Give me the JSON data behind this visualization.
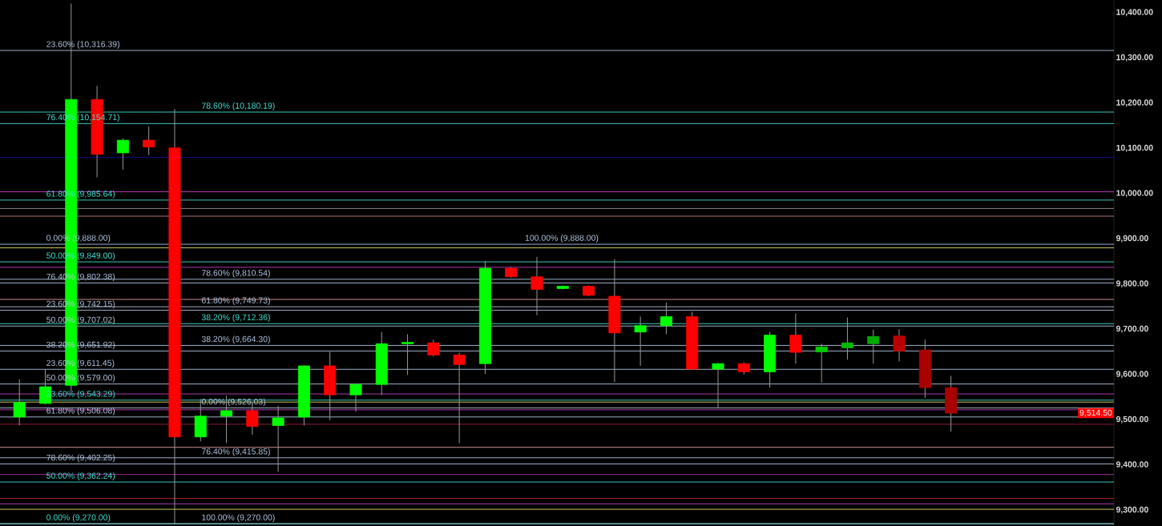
{
  "chart_data": {
    "type": "candlestick",
    "categories": [
      null,
      null,
      null,
      null,
      null,
      null,
      null,
      null,
      null,
      null,
      null,
      null,
      null,
      null,
      null,
      null,
      null,
      null,
      null,
      null,
      null,
      null,
      null,
      null,
      null,
      null,
      null,
      null,
      null,
      null,
      null,
      null,
      null,
      null,
      null,
      null,
      null,
      null,
      null,
      null,
      null,
      null,
      null
    ],
    "ohlc": [
      [
        9506,
        9589,
        9488,
        9538
      ],
      [
        9536,
        9612,
        9534,
        9573
      ],
      [
        9576,
        10420,
        9562,
        10208
      ],
      [
        10208,
        10238,
        10036,
        10087
      ],
      [
        10090,
        10122,
        10053,
        10118
      ],
      [
        10118,
        10148,
        10085,
        10103
      ],
      [
        10101,
        10187,
        9270,
        9462
      ],
      [
        9462,
        9546,
        9452,
        9508
      ],
      [
        9508,
        9553,
        9448,
        9520
      ],
      [
        9520,
        9538,
        9467,
        9485
      ],
      [
        9487,
        9531,
        9385,
        9504
      ],
      [
        9506,
        9621,
        9487,
        9619
      ],
      [
        9619,
        9650,
        9499,
        9555
      ],
      [
        9555,
        9580,
        9518,
        9578
      ],
      [
        9578,
        9694,
        9555,
        9668
      ],
      [
        9668,
        9689,
        9599,
        9671
      ],
      [
        9670,
        9677,
        9640,
        9643
      ],
      [
        9643,
        9648,
        9448,
        9622
      ],
      [
        9624,
        9851,
        9601,
        9835
      ],
      [
        9835,
        9837,
        9814,
        9816
      ],
      [
        9816,
        9860,
        9731,
        9788
      ],
      [
        9790,
        9797,
        9788,
        9795
      ],
      [
        9795,
        9797,
        9773,
        9775
      ],
      [
        9773,
        9855,
        9583,
        9692
      ],
      [
        9694,
        9728,
        9619,
        9708
      ],
      [
        9708,
        9759,
        9689,
        9728
      ],
      [
        9728,
        9739,
        9610,
        9612
      ],
      [
        9612,
        9626,
        9525,
        9624
      ],
      [
        9624,
        9627,
        9600,
        9606
      ],
      [
        9606,
        9694,
        9571,
        9687
      ],
      [
        9687,
        9735,
        9624,
        9649
      ],
      [
        9650,
        9668,
        9582,
        9661
      ],
      [
        9659,
        9726,
        9633,
        9670
      ],
      [
        9668,
        9699,
        9624,
        9684
      ],
      [
        9685,
        9700,
        9629,
        9652
      ],
      [
        9654,
        9677,
        9548,
        9571
      ],
      [
        9571,
        9597,
        9474,
        9514.5
      ],
      null,
      null,
      null,
      null,
      null,
      null
    ],
    "colors": [
      "#00ff00",
      "#00ff00",
      "#00ff00",
      "#ff0000",
      "#00ff00",
      "#ff0000",
      "#ff0000",
      "#00ff00",
      "#00ff00",
      "#ff0000",
      "#00ff00",
      "#00ff00",
      "#ff0000",
      "#00ff00",
      "#00ff00",
      "#00ff00",
      "#ff0000",
      "#ff0000",
      "#00ff00",
      "#ff0000",
      "#ff0000",
      "#00ff00",
      "#ff0000",
      "#ff0000",
      "#00ff00",
      "#00ff00",
      "#ff0000",
      "#00ff00",
      "#ff0000",
      "#00ff00",
      "#ff0000",
      "#00cc00",
      "#00bb00",
      "#00aa00",
      "#bb0000",
      "#aa0000",
      "#aa0000",
      null,
      null,
      null,
      null,
      null,
      null
    ],
    "ylim": [
      9265,
      10428
    ],
    "yticks": [
      {
        "value": 9300,
        "label": "9,300.00"
      },
      {
        "value": 9400,
        "label": "9,400.00"
      },
      {
        "value": 9500,
        "label": "9,500.00"
      },
      {
        "value": 9600,
        "label": "9,600.00"
      },
      {
        "value": 9700,
        "label": "9,700.00"
      },
      {
        "value": 9800,
        "label": "9,800.00"
      },
      {
        "value": 9900,
        "label": "9,900.00"
      },
      {
        "value": 10000,
        "label": "10,000.00"
      },
      {
        "value": 10100,
        "label": "10,100.00"
      },
      {
        "value": 10200,
        "label": "10,200.00"
      },
      {
        "value": 10300,
        "label": "10,300.00"
      },
      {
        "value": 10400,
        "label": "10,400.00"
      }
    ],
    "tick_labels": "y",
    "ref_lines": [
      {
        "axis": "y",
        "value": 10316.39,
        "label": "23.60% (10,316.39)",
        "color": "#b0c4de"
      },
      {
        "axis": "y",
        "value": 10180.19,
        "label": "78.60% (10,180.19)",
        "color": "#40e0d0"
      },
      {
        "axis": "y",
        "value": 10154.71,
        "label": "76.40% (10,154.71)",
        "color": "#40e0d0"
      },
      {
        "axis": "y",
        "value": 9985.64,
        "label": "61.80% (9,985.64)",
        "color": "#40e0d0"
      },
      {
        "axis": "y",
        "value": 9888.0,
        "label": "0.00% (9,888.00)",
        "color": "#b0c4de"
      },
      {
        "axis": "y",
        "value": 9849.0,
        "label": "50.00% (9,849.00)",
        "color": "#40e0d0"
      },
      {
        "axis": "y",
        "value": 9742.15,
        "label": "23.60% (9,742.15)",
        "color": "#b0c4de"
      },
      {
        "axis": "y",
        "value": 9712.36,
        "label": "38.20% (9,712.36)",
        "color": "#40e0d0"
      },
      {
        "axis": "y",
        "value": 9651.92,
        "label": "38.20% (9,651.92)",
        "color": "#b0c4de"
      },
      {
        "axis": "y",
        "value": 9579.0,
        "label": "50.00% (9,579.00)",
        "color": "#b0c4de"
      },
      {
        "axis": "y",
        "value": 9543.29,
        "label": "23.60% (9,543.29)",
        "color": "#40e0d0"
      },
      {
        "axis": "y",
        "value": 9506.08,
        "label": "61.80% (9,506.08)",
        "color": "#b0c4de"
      },
      {
        "axis": "y",
        "value": 9415.85,
        "label": "76.40% (9,415.85)",
        "color": "#b0c4de"
      },
      {
        "axis": "y",
        "value": 9402.25,
        "label": "78.60% (9,402.25)",
        "color": "#b0c4de"
      },
      {
        "axis": "y",
        "value": 9270.0,
        "label": "0.00% (9,270.00)",
        "color": "#40e0d0"
      },
      {
        "axis": "y",
        "value": 9270.0,
        "label": "100.00% (9,270.00)",
        "color": "#b0c4de"
      },
      {
        "axis": "y",
        "value": 9810.54,
        "label": "78.60% (9,810.54)",
        "color": "#b0c4de"
      },
      {
        "axis": "y",
        "value": 9802.38,
        "label": "76.40% (9,802.38)",
        "color": "#b0c4de"
      },
      {
        "axis": "y",
        "value": 9749.73,
        "label": "61.80% (9,749.73)",
        "color": "#b0c4de"
      },
      {
        "axis": "y",
        "value": 9707.02,
        "label": "50.00% (9,707.02)",
        "color": "#b0c4de"
      },
      {
        "axis": "y",
        "value": 9664.3,
        "label": "38.20% (9,664.30)",
        "color": "#b0c4de"
      },
      {
        "axis": "y",
        "value": 9611.45,
        "label": "23.60% (9,611.45)",
        "color": "#b0c4de"
      },
      {
        "axis": "y",
        "value": 9526.03,
        "label": "0.00% (9,526.03)",
        "color": "#b0c4de"
      },
      {
        "axis": "y",
        "value": 9362.24,
        "label": "50.00% (9,362.24)",
        "color": "#40e0d0"
      },
      {
        "axis": "y",
        "value": 10080,
        "color": "#1010a0"
      },
      {
        "axis": "y",
        "value": 10004,
        "color": "#c040c0"
      },
      {
        "axis": "y",
        "value": 9967,
        "color": "#909090"
      },
      {
        "axis": "y",
        "value": 9950,
        "color": "#c08080"
      },
      {
        "axis": "y",
        "value": 9880,
        "color": "#e0e060"
      },
      {
        "axis": "y",
        "value": 9837,
        "color": "#c040c0"
      },
      {
        "axis": "y",
        "value": 9766,
        "color": "#e0a0a0"
      },
      {
        "axis": "y",
        "value": 9557,
        "color": "#c040c0"
      },
      {
        "axis": "y",
        "value": 9539,
        "color": "#e0e060"
      },
      {
        "axis": "y",
        "value": 9522,
        "color": "#c040c0"
      },
      {
        "axis": "y",
        "value": 9490,
        "color": "#a02040"
      },
      {
        "axis": "y",
        "value": 9439,
        "color": "#e0a0a0"
      },
      {
        "axis": "y",
        "value": 9379,
        "color": "#a030a0"
      },
      {
        "axis": "y",
        "value": 9326,
        "color": "#c02020"
      },
      {
        "axis": "y",
        "value": 9314,
        "color": "#c040c0"
      },
      {
        "axis": "y",
        "value": 9302,
        "color": "#e0e060"
      }
    ],
    "annotations": [
      "9,514.50",
      {
        "text": "100.00% (9,888.00)",
        "y": 9888.0
      }
    ]
  }
}
